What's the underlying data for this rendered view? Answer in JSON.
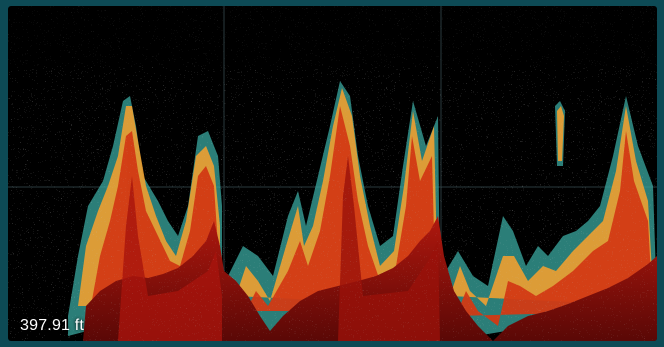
{
  "sonar": {
    "depth_value": "397.91",
    "depth_unit": "ft",
    "depth_text": "397.91 ft",
    "colors": {
      "background": "#000000",
      "frame": "#0d4a55",
      "grid": "#2a3a3e",
      "bottom_return": "#8a0f0a",
      "strong_return": "#d23a14",
      "medium_return": "#f0a030",
      "weak_return": "#3aa8a0"
    }
  }
}
